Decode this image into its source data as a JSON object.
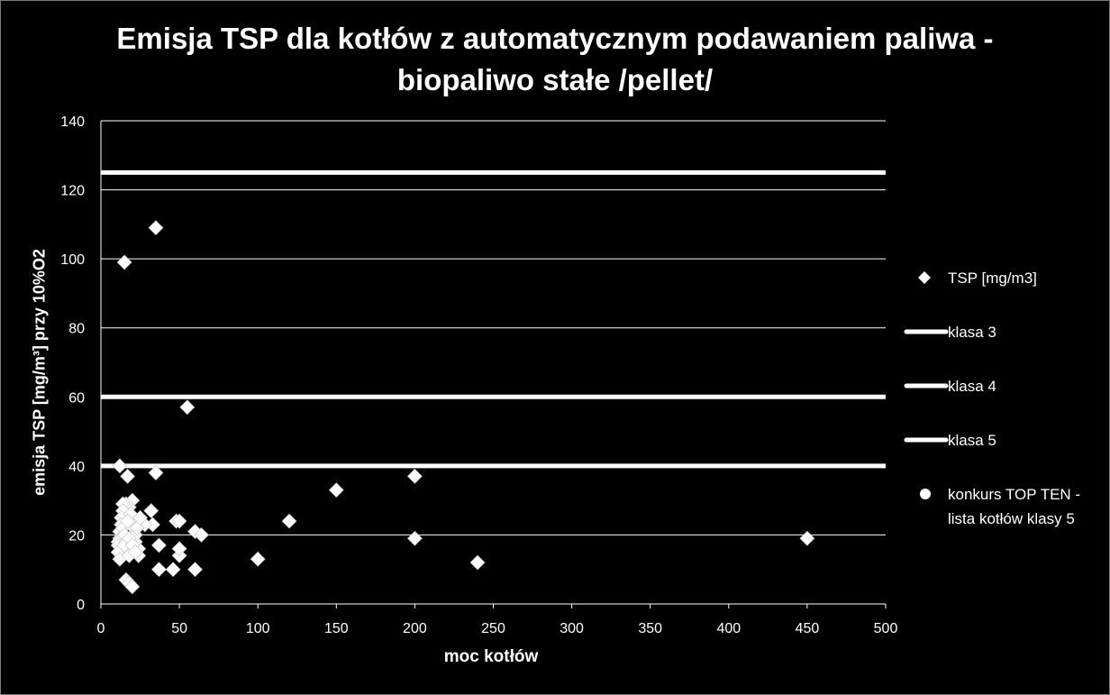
{
  "chart_data": {
    "type": "scatter",
    "title_line1": "Emisja TSP dla kotłów z automatycznym podawaniem paliwa -",
    "title_line2": "biopaliwo stałe /pellet/",
    "xlabel": "moc kotłów",
    "ylabel": "emisja TSP [mg/m³] przy 10%O2",
    "xlim": [
      0,
      500
    ],
    "ylim": [
      0,
      140
    ],
    "x_ticks": [
      0,
      50,
      100,
      150,
      200,
      250,
      300,
      350,
      400,
      450,
      500
    ],
    "y_ticks": [
      0,
      20,
      40,
      60,
      80,
      100,
      120,
      140
    ],
    "grid": "horizontal",
    "legend_position": "right",
    "series": [
      {
        "name": "TSP [mg/m3]",
        "marker": "diamond",
        "color": "#ffffff",
        "points": [
          [
            15,
            99
          ],
          [
            35,
            109
          ],
          [
            55,
            57
          ],
          [
            12,
            40
          ],
          [
            17,
            37
          ],
          [
            35,
            38
          ],
          [
            150,
            33
          ],
          [
            200,
            37
          ],
          [
            120,
            24
          ],
          [
            200,
            19
          ],
          [
            240,
            12
          ],
          [
            450,
            19
          ],
          [
            100,
            13
          ],
          [
            60,
            10
          ],
          [
            46,
            10
          ],
          [
            37,
            10
          ],
          [
            50,
            14
          ],
          [
            50,
            16
          ],
          [
            60,
            21
          ],
          [
            64,
            20
          ],
          [
            48,
            24
          ],
          [
            50,
            24
          ],
          [
            37,
            17
          ],
          [
            32,
            27
          ],
          [
            33,
            23
          ],
          [
            28,
            23
          ],
          [
            24,
            16
          ],
          [
            24,
            14
          ],
          [
            22,
            18
          ],
          [
            20,
            30
          ],
          [
            18,
            28
          ],
          [
            16,
            29
          ],
          [
            14,
            29
          ],
          [
            14,
            27
          ],
          [
            13,
            25
          ],
          [
            13,
            23
          ],
          [
            12,
            21
          ],
          [
            12,
            19
          ],
          [
            11,
            18
          ],
          [
            11,
            17
          ],
          [
            11,
            15
          ],
          [
            12,
            13
          ],
          [
            14,
            22
          ],
          [
            15,
            20
          ],
          [
            16,
            18
          ],
          [
            17,
            16
          ],
          [
            18,
            14
          ],
          [
            16,
            7
          ],
          [
            18,
            6
          ],
          [
            20,
            5
          ],
          [
            20,
            24
          ],
          [
            21,
            22
          ],
          [
            22,
            20
          ],
          [
            19,
            26
          ],
          [
            17,
            24
          ],
          [
            15,
            17
          ],
          [
            18,
            19
          ],
          [
            20,
            17
          ],
          [
            22,
            15
          ],
          [
            23,
            22
          ],
          [
            25,
            25
          ]
        ]
      },
      {
        "name": "klasa 3",
        "type": "hline",
        "y": 125,
        "color": "#ffffff"
      },
      {
        "name": "klasa 4",
        "type": "hline",
        "y": 60,
        "color": "#ffffff"
      },
      {
        "name": "klasa 5",
        "type": "hline",
        "y": 40,
        "color": "#ffffff"
      },
      {
        "name": "konkurs TOP TEN - lista kotłów klasy 5",
        "marker": "circle",
        "color": "#ffffff",
        "points": []
      }
    ],
    "legend_last_line1": "konkurs TOP TEN -",
    "legend_last_line2": "lista kotłów klasy 5"
  }
}
